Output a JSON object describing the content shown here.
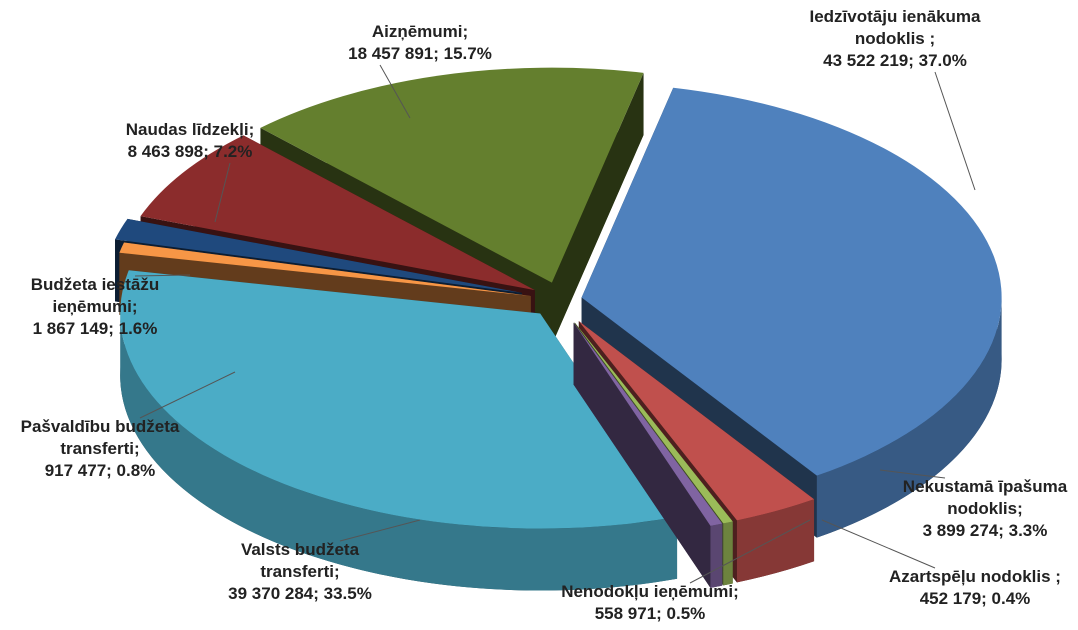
{
  "chart_data": {
    "type": "pie3d",
    "categories": [
      "Iedzīvotāju ienākuma nodoklis ;",
      "Nekustamā īpašuma nodoklis;",
      "Azartspēļu nodoklis ;",
      "Nenodokļu ieņēmumi;",
      "Valsts budžeta transferti;",
      "Pašvaldību budžeta transferti;",
      "Budžeta iestāžu ieņēmumi;",
      "Naudas līdzekļi;",
      "Aizņēmumi;"
    ],
    "values": [
      43522219,
      3899274,
      452179,
      558971,
      39370284,
      917477,
      1867149,
      8463898,
      18457891
    ],
    "value_labels": [
      "43 522 219; 37.0%",
      "3 899 274; 3.3%",
      "452 179; 0.4%",
      "558 971; 0.5%",
      "39 370 284; 33.5%",
      "917 477; 0.8%",
      "1 867 149; 1.6%",
      "8 463 898; 7.2%",
      "18 457 891; 15.7%"
    ],
    "colors": [
      "#4f81bd",
      "#c0504d",
      "#9bbb59",
      "#8064a2",
      "#4bacc6",
      "#f79646",
      "#1f497d",
      "#8b2c2c",
      "#647f2e"
    ]
  }
}
